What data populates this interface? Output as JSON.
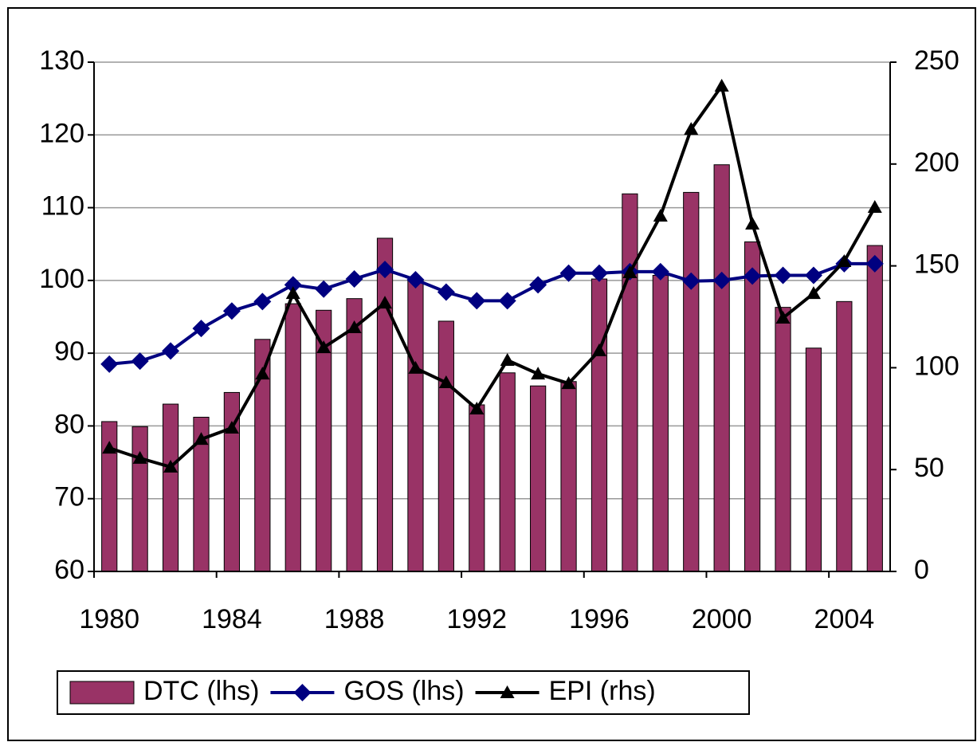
{
  "chart_data": {
    "type": "bar_line_combo",
    "categories": [
      "1980",
      null,
      null,
      null,
      "1984",
      null,
      null,
      null,
      "1988",
      null,
      null,
      null,
      "1992",
      null,
      null,
      null,
      "1996",
      null,
      null,
      null,
      "2000",
      null,
      null,
      null,
      "2004",
      null
    ],
    "ylim": [
      60,
      130
    ],
    "yticks": [
      60,
      70,
      80,
      90,
      100,
      110,
      120,
      130
    ],
    "y2lim": [
      0,
      250
    ],
    "y2ticks": [
      0,
      50,
      100,
      150,
      200,
      250
    ],
    "legend": "bottom",
    "series": [
      {
        "name": "DTC (lhs)",
        "type": "bar",
        "color": "#993366",
        "values": [
          80.6,
          79.9,
          83.0,
          81.2,
          84.6,
          91.9,
          96.8,
          95.9,
          97.5,
          105.8,
          100.1,
          94.4,
          82.9,
          87.3,
          85.5,
          86.1,
          100.2,
          111.9,
          100.7,
          112.1,
          115.9,
          105.3,
          96.3,
          90.7,
          97.1,
          104.8
        ]
      },
      {
        "name": "GOS (lhs)",
        "type": "line",
        "marker": "diamond",
        "color": "#000080",
        "values": [
          88.5,
          88.9,
          90.3,
          93.4,
          95.8,
          97.1,
          99.4,
          98.8,
          100.2,
          101.5,
          100.1,
          98.4,
          97.2,
          97.2,
          99.4,
          101.0,
          101.0,
          101.2,
          101.2,
          99.9,
          100.0,
          100.6,
          100.7,
          100.7,
          102.3,
          102.3
        ]
      },
      {
        "name": "EPI (rhs)",
        "type": "line",
        "marker": "triangle",
        "color": "#000000",
        "axis": "y2",
        "values": [
          60.6,
          55.6,
          51.3,
          64.9,
          70.4,
          97.0,
          136.5,
          109.9,
          119.7,
          131.8,
          99.8,
          92.7,
          79.8,
          103.7,
          97.0,
          92.3,
          108.4,
          146.7,
          174.5,
          217.1,
          238.3,
          170.6,
          124.4,
          136.5,
          152.2,
          178.8
        ]
      }
    ]
  }
}
